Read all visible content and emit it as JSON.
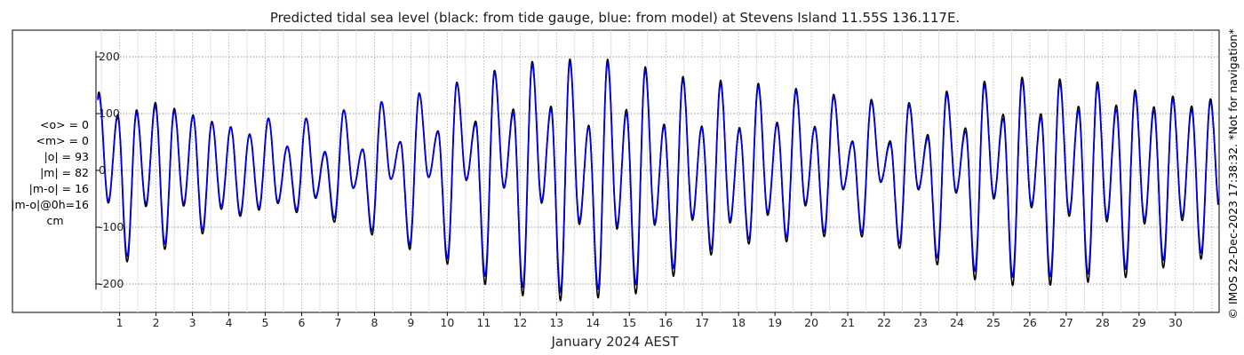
{
  "chart_data": {
    "type": "line",
    "title": "Predicted tidal sea level (black: from tide gauge, blue: from model) at Stevens Island 11.55S 136.117E.",
    "xlabel": "January 2024 AEST",
    "ylabel": "",
    "x_ticks": [
      "1",
      "2",
      "3",
      "4",
      "5",
      "6",
      "7",
      "8",
      "9",
      "10",
      "11",
      "12",
      "13",
      "14",
      "15",
      "16",
      "17",
      "18",
      "19",
      "20",
      "21",
      "22",
      "23",
      "24",
      "25",
      "26",
      "27",
      "28",
      "29",
      "30"
    ],
    "y_ticks": [
      "200",
      "100",
      "0",
      "-100",
      "-200"
    ],
    "xlim_days": [
      0.35,
      31.2
    ],
    "ylim": [
      -250,
      250
    ],
    "grid": true,
    "series": [
      {
        "name": "from tide gauge",
        "color": "#000000",
        "envelope": {
          "day": [
            0.4,
            1,
            2,
            3,
            4,
            5,
            6,
            7,
            8,
            9,
            10,
            11,
            12,
            13,
            14,
            15,
            16,
            17,
            18,
            19,
            20,
            21,
            22,
            23,
            24,
            25,
            26,
            27,
            28,
            29,
            30,
            31.2
          ],
          "high1": [
            140,
            95,
            120,
            98,
            76,
            55,
            33,
            30,
            40,
            54,
            75,
            90,
            112,
            113,
            75,
            110,
            80,
            78,
            75,
            85,
            80,
            52,
            50,
            62,
            67,
            100,
            95,
            110,
            118,
            110,
            115,
            110
          ],
          "high2": [
            128,
            95,
            120,
            98,
            76,
            92,
            90,
            104,
            118,
            132,
            150,
            170,
            190,
            195,
            198,
            192,
            170,
            160,
            157,
            150,
            140,
            130,
            122,
            118,
            148,
            160,
            165,
            160,
            155,
            140,
            130,
            125
          ],
          "low1": [
            -55,
            -60,
            -65,
            -62,
            -70,
            -70,
            -75,
            -93,
            -115,
            -140,
            -165,
            -200,
            -220,
            -230,
            -225,
            -222,
            -195,
            -155,
            -130,
            -128,
            -120,
            -110,
            -128,
            -150,
            -185,
            -200,
            -205,
            -200,
            -195,
            -185,
            -165,
            -150
          ],
          "low2": [
            -150,
            -165,
            -145,
            -120,
            -90,
            -60,
            -55,
            -40,
            -20,
            -10,
            -15,
            -20,
            -40,
            -70,
            -110,
            -100,
            -95,
            -85,
            -95,
            -75,
            -60,
            -30,
            -20,
            -35,
            -40,
            -50,
            -65,
            -80,
            -90,
            -95,
            -90,
            -80
          ]
        }
      },
      {
        "name": "from model",
        "color": "#0000dd",
        "envelope": {
          "day": [
            0.4,
            1,
            2,
            3,
            4,
            5,
            6,
            7,
            8,
            9,
            10,
            11,
            12,
            13,
            14,
            15,
            16,
            17,
            18,
            19,
            20,
            21,
            22,
            23,
            24,
            25,
            26,
            27,
            28,
            29,
            30,
            31.2
          ],
          "high1": [
            135,
            92,
            114,
            96,
            75,
            54,
            35,
            32,
            40,
            55,
            72,
            85,
            105,
            108,
            72,
            103,
            76,
            75,
            72,
            82,
            78,
            50,
            46,
            56,
            62,
            92,
            88,
            103,
            110,
            103,
            108,
            104
          ],
          "high2": [
            122,
            92,
            114,
            96,
            75,
            92,
            90,
            104,
            118,
            132,
            148,
            168,
            185,
            190,
            192,
            186,
            165,
            155,
            152,
            146,
            136,
            126,
            118,
            114,
            142,
            153,
            158,
            153,
            148,
            134,
            124,
            120
          ],
          "low1": [
            -52,
            -56,
            -60,
            -58,
            -65,
            -66,
            -70,
            -85,
            -108,
            -132,
            -155,
            -185,
            -205,
            -215,
            -210,
            -205,
            -180,
            -145,
            -122,
            -120,
            -112,
            -103,
            -120,
            -140,
            -170,
            -185,
            -190,
            -185,
            -180,
            -170,
            -152,
            -140
          ],
          "low2": [
            -140,
            -155,
            -135,
            -112,
            -85,
            -57,
            -52,
            -38,
            -20,
            -10,
            -14,
            -18,
            -38,
            -65,
            -103,
            -94,
            -90,
            -80,
            -90,
            -70,
            -56,
            -28,
            -18,
            -32,
            -37,
            -46,
            -60,
            -74,
            -83,
            -88,
            -83,
            -74
          ]
        }
      }
    ]
  },
  "stats": {
    "lines": [
      "<o> = 0",
      "<m> = 0",
      "|o| = 93",
      "|m| = 82",
      "|m-o| = 16",
      "|m-o|@0h=16",
      "cm"
    ]
  },
  "watermark": "© IMOS 22-Dec-2023 17:38:32. *Not for navigation*"
}
